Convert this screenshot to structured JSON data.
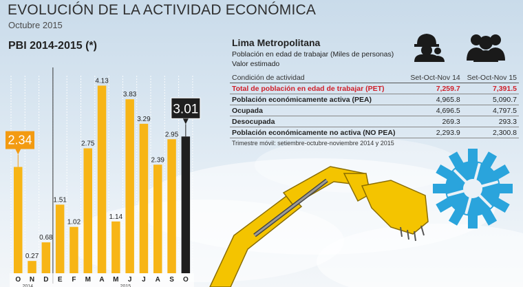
{
  "header": {
    "title": "EVOLUCIÓN DE LA ACTIVIDAD ECONÓMICA",
    "subtitle": "Octubre 2015"
  },
  "chart_data": {
    "type": "bar",
    "title": "PBI 2014-2015 (*)",
    "categories": [
      "O",
      "N",
      "D",
      "E",
      "F",
      "M",
      "A",
      "M",
      "J",
      "J",
      "A",
      "S",
      "O"
    ],
    "year_labels": [
      "2014",
      "2015"
    ],
    "values": [
      2.34,
      0.27,
      0.68,
      1.51,
      1.02,
      2.75,
      4.13,
      1.14,
      3.83,
      3.29,
      2.39,
      2.95,
      3.01
    ],
    "value_labels": [
      "2.34",
      "0.27",
      "0.68",
      "1.51",
      "1.02",
      "2.75",
      "4.13",
      "1.14",
      "3.83",
      "3.29",
      "2.39",
      "2.95",
      "3.01"
    ],
    "highlighted": [
      0,
      12
    ],
    "ylim": [
      0,
      4.5
    ],
    "colors": {
      "bar": "#f7b516",
      "latest": "#1f1f1f",
      "callout_2014": "#f39b12",
      "callout_2015": "#1f1f1f"
    }
  },
  "panel": {
    "title": "Lima Metropolitana",
    "sub1": "Población en edad de trabajar (Miles de personas)",
    "sub2": "Valor estimado",
    "icons": [
      "worker-icon",
      "people-icon"
    ],
    "table": {
      "headers": [
        "Condición de actividad",
        "Set-Oct-Nov 14",
        "Set-Oct-Nov 15"
      ],
      "rows": [
        {
          "label": "Total de población en edad de trabajar (PET)",
          "v14": "7,259.7",
          "v15": "7,391.5",
          "highlight": true
        },
        {
          "label": "Población económicamente activa (PEA)",
          "v14": "4,965.8",
          "v15": "5,090.7"
        },
        {
          "label": "Ocupada",
          "v14": "4,696.5",
          "v15": "4,797.5"
        },
        {
          "label": "Desocupada",
          "v14": "269.3",
          "v15": "293.3"
        },
        {
          "label": "Población económicamente no activa (NO PEA)",
          "v14": "2,293.9",
          "v15": "2,300.8"
        }
      ]
    },
    "note": "Trimestre móvil: setiembre-octubre-noviembre 2014 y 2015"
  },
  "decor": {
    "gear_color": "#2aa4dc",
    "excavator_color": "#f4c400"
  }
}
